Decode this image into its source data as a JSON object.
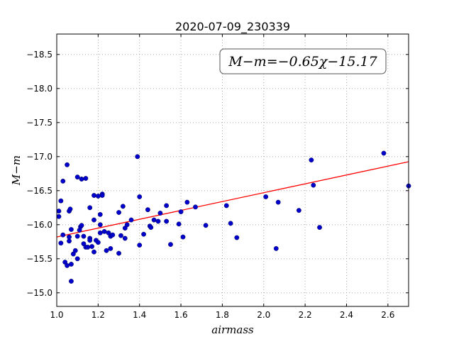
{
  "chart_data": {
    "type": "scatter",
    "title": "2020-07-09_230339",
    "xlabel": "airmass",
    "ylabel": "M−m",
    "xlim": [
      1.0,
      2.7
    ],
    "ylim": [
      -18.8,
      -14.8
    ],
    "y_inverted": true,
    "grid": true,
    "x_ticks": [
      "1.0",
      "1.2",
      "1.4",
      "1.6",
      "1.8",
      "2.0",
      "2.2",
      "2.4",
      "2.6"
    ],
    "y_ticks": [
      "−15.0",
      "−15.5",
      "−16.0",
      "−16.5",
      "−17.0",
      "−17.5",
      "−18.0",
      "−18.5"
    ],
    "annotation": "M−m=−0.65χ−15.17",
    "point_color": "#0000cc",
    "fit_color": "#ff0000",
    "fit": {
      "slope": -0.65,
      "intercept": -15.17,
      "x_range": [
        1.0,
        2.7
      ]
    },
    "points": [
      [
        1.01,
        -16.12
      ],
      [
        1.01,
        -16.2
      ],
      [
        1.02,
        -15.73
      ],
      [
        1.02,
        -16.35
      ],
      [
        1.03,
        -15.85
      ],
      [
        1.03,
        -16.64
      ],
      [
        1.04,
        -15.45
      ],
      [
        1.05,
        -16.88
      ],
      [
        1.05,
        -15.4
      ],
      [
        1.06,
        -16.2
      ],
      [
        1.06,
        -15.76
      ],
      [
        1.06,
        -15.82
      ],
      [
        1.065,
        -16.23
      ],
      [
        1.07,
        -15.17
      ],
      [
        1.07,
        -15.42
      ],
      [
        1.07,
        -15.93
      ],
      [
        1.08,
        -15.57
      ],
      [
        1.09,
        -15.62
      ],
      [
        1.1,
        -15.5
      ],
      [
        1.1,
        -15.83
      ],
      [
        1.1,
        -16.7
      ],
      [
        1.11,
        -15.92
      ],
      [
        1.115,
        -15.97
      ],
      [
        1.12,
        -16.67
      ],
      [
        1.12,
        -15.99
      ],
      [
        1.13,
        -15.72
      ],
      [
        1.13,
        -15.83
      ],
      [
        1.14,
        -16.68
      ],
      [
        1.14,
        -15.67
      ],
      [
        1.15,
        -15.67
      ],
      [
        1.16,
        -15.8
      ],
      [
        1.16,
        -15.77
      ],
      [
        1.16,
        -16.25
      ],
      [
        1.17,
        -15.68
      ],
      [
        1.18,
        -15.6
      ],
      [
        1.18,
        -16.07
      ],
      [
        1.18,
        -16.43
      ],
      [
        1.19,
        -15.77
      ],
      [
        1.2,
        -15.74
      ],
      [
        1.2,
        -16.42
      ],
      [
        1.21,
        -16.15
      ],
      [
        1.21,
        -15.88
      ],
      [
        1.21,
        -16.0
      ],
      [
        1.22,
        -16.45
      ],
      [
        1.22,
        -16.43
      ],
      [
        1.23,
        -15.9
      ],
      [
        1.24,
        -15.62
      ],
      [
        1.25,
        -15.88
      ],
      [
        1.26,
        -15.83
      ],
      [
        1.26,
        -15.65
      ],
      [
        1.27,
        -15.85
      ],
      [
        1.3,
        -15.58
      ],
      [
        1.3,
        -16.18
      ],
      [
        1.31,
        -15.84
      ],
      [
        1.32,
        -16.27
      ],
      [
        1.33,
        -15.95
      ],
      [
        1.33,
        -15.8
      ],
      [
        1.34,
        -16.0
      ],
      [
        1.36,
        -16.07
      ],
      [
        1.39,
        -17.0
      ],
      [
        1.4,
        -16.41
      ],
      [
        1.4,
        -15.7
      ],
      [
        1.42,
        -15.86
      ],
      [
        1.44,
        -16.22
      ],
      [
        1.45,
        -15.98
      ],
      [
        1.455,
        -15.96
      ],
      [
        1.47,
        -16.07
      ],
      [
        1.49,
        -16.05
      ],
      [
        1.5,
        -16.17
      ],
      [
        1.53,
        -16.28
      ],
      [
        1.53,
        -16.05
      ],
      [
        1.55,
        -15.71
      ],
      [
        1.59,
        -16.01
      ],
      [
        1.6,
        -16.19
      ],
      [
        1.61,
        -15.82
      ],
      [
        1.63,
        -16.33
      ],
      [
        1.67,
        -16.26
      ],
      [
        1.72,
        -15.99
      ],
      [
        1.82,
        -16.28
      ],
      [
        1.84,
        -16.02
      ],
      [
        1.87,
        -15.81
      ],
      [
        2.01,
        -16.41
      ],
      [
        2.06,
        -15.65
      ],
      [
        2.07,
        -16.33
      ],
      [
        2.17,
        -16.21
      ],
      [
        2.23,
        -16.95
      ],
      [
        2.24,
        -16.58
      ],
      [
        2.27,
        -15.96
      ],
      [
        2.58,
        -17.05
      ],
      [
        2.7,
        -16.57
      ]
    ]
  }
}
